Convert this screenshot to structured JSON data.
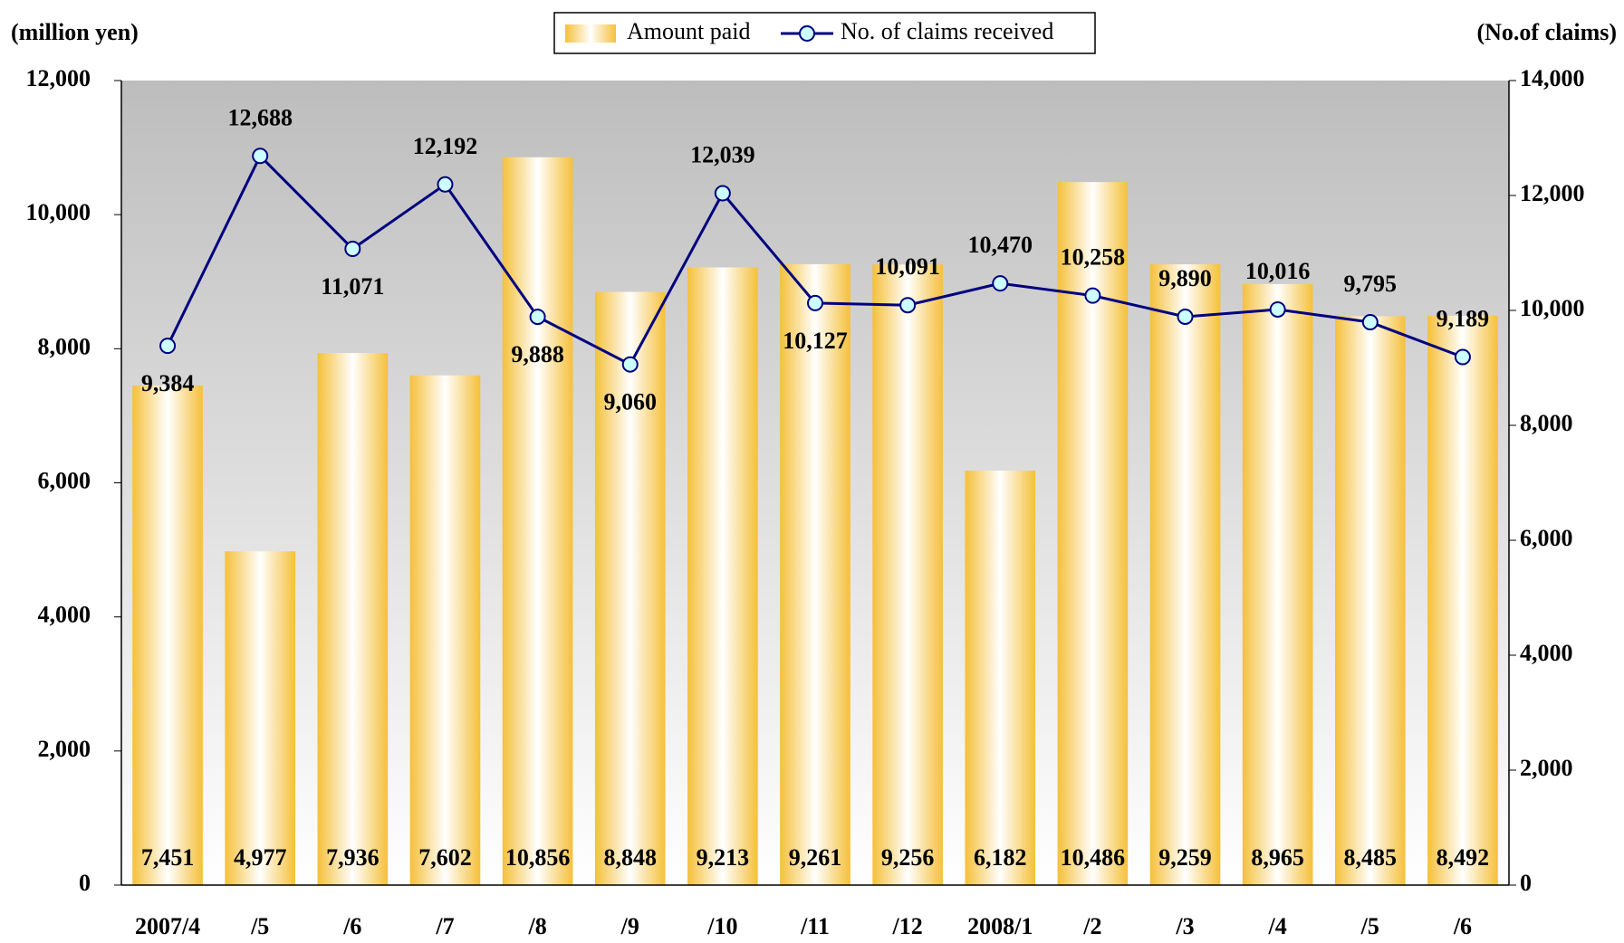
{
  "chart_data": {
    "type": "bar_line",
    "y_label": "(million yen)",
    "y2_label": "(No.of claims)",
    "categories": [
      "2007/4",
      "/5",
      "/6",
      "/7",
      "/8",
      "/9",
      "/10",
      "/11",
      "/12",
      "2008/1",
      "/2",
      "/3",
      "/4",
      "/5",
      "/6"
    ],
    "series": [
      {
        "name": "Amount paid",
        "type": "bar",
        "color": "#f5c03a",
        "values": [
          7451,
          4977,
          7936,
          7602,
          10856,
          8848,
          9213,
          9261,
          9256,
          6182,
          10486,
          9259,
          8965,
          8485,
          8492
        ],
        "value_labels": [
          "7,451",
          "4,977",
          "7,936",
          "7,602",
          "10,856",
          "8,848",
          "9,213",
          "9,261",
          "9,256",
          "6,182",
          "10,486",
          "9,259",
          "8,965",
          "8,485",
          "8,492"
        ]
      },
      {
        "name": "No. of claims received",
        "type": "line",
        "axis": "y2",
        "color": "#000080",
        "values": [
          9384,
          12688,
          11071,
          12192,
          9888,
          9060,
          12039,
          10127,
          10091,
          10470,
          10258,
          9890,
          10016,
          9795,
          9189
        ],
        "value_labels": [
          "9,384",
          "12,688",
          "11,071",
          "12,192",
          "9,888",
          "9,060",
          "12,039",
          "10,127",
          "10,091",
          "10,470",
          "10,258",
          "9,890",
          "10,016",
          "9,795",
          "9,189"
        ]
      }
    ],
    "ylim": [
      0,
      12000
    ],
    "yticks": [
      0,
      {
        "value": 2000,
        "label": "2,000"
      },
      {
        "value": 4000,
        "label": "4,000"
      },
      {
        "value": 6000,
        "label": "6,000"
      },
      {
        "value": 8000,
        "label": "8,000"
      },
      {
        "value": 10000,
        "label": "10,000"
      },
      {
        "value": 12000,
        "label": "12,000"
      }
    ],
    "y2lim": [
      0,
      14000
    ],
    "y2ticks": [
      0,
      {
        "value": 2000,
        "label": "2,000"
      },
      {
        "value": 4000,
        "label": "4,000"
      },
      {
        "value": 6000,
        "label": "6,000"
      },
      {
        "value": 8000,
        "label": "8,000"
      },
      {
        "value": 10000,
        "label": "10,000"
      },
      {
        "value": 12000,
        "label": "12,000"
      },
      {
        "value": 14000,
        "label": "14,000"
      }
    ],
    "legend": "top"
  }
}
